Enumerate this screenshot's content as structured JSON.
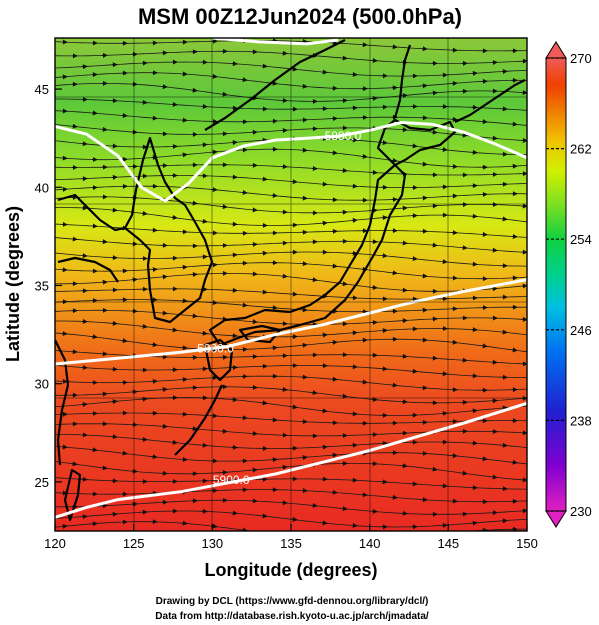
{
  "title": "MSM 00Z12Jun2024 (500.0hPa)",
  "x_axis": {
    "label": "Longitude (degrees)",
    "ticks": [
      "120",
      "125",
      "130",
      "135",
      "140",
      "145",
      "150"
    ],
    "range": [
      120,
      150
    ]
  },
  "y_axis": {
    "label": "Latitude  (degrees)",
    "ticks": [
      "25",
      "30",
      "35",
      "40",
      "45"
    ],
    "range": [
      22.5,
      47.6
    ]
  },
  "colorbar": {
    "ticks": [
      "270",
      "262",
      "254",
      "246",
      "238",
      "230"
    ],
    "min": 230,
    "max": 270,
    "colors": [
      "#e020c0",
      "#8000d0",
      "#2020d0",
      "#0070f0",
      "#00c0e0",
      "#00d090",
      "#10d040",
      "#80e020",
      "#d0f000",
      "#f0c000",
      "#f08000",
      "#f04000",
      "#e02010",
      "#f05a5a"
    ]
  },
  "contours": [
    {
      "label": "5880.0",
      "points": [
        [
          120,
          43.1
        ],
        [
          122,
          42.7
        ],
        [
          124,
          41.6
        ],
        [
          125.5,
          40.0
        ],
        [
          127,
          39.3
        ],
        [
          128.5,
          40.2
        ],
        [
          130,
          41.5
        ],
        [
          132,
          42.1
        ],
        [
          134,
          42.4
        ],
        [
          136,
          42.5
        ],
        [
          138,
          42.6
        ],
        [
          140,
          42.9
        ],
        [
          142,
          43.3
        ],
        [
          144,
          43.2
        ],
        [
          146,
          42.8
        ],
        [
          148,
          42.2
        ],
        [
          150,
          41.5
        ]
      ]
    },
    {
      "label": "5880.0",
      "points": [
        [
          130,
          47.6
        ],
        [
          133,
          47.4
        ],
        [
          136,
          47.3
        ],
        [
          138,
          47.5
        ]
      ]
    },
    {
      "label": "5880.0",
      "points": [
        [
          120,
          31.0
        ],
        [
          124,
          31.3
        ],
        [
          128,
          31.6
        ],
        [
          131,
          31.9
        ],
        [
          134,
          32.5
        ],
        [
          137,
          33.0
        ],
        [
          140,
          33.6
        ],
        [
          143,
          34.2
        ],
        [
          146,
          34.7
        ],
        [
          150,
          35.3
        ]
      ]
    },
    {
      "label": "5900.0",
      "points": [
        [
          120,
          23.2
        ],
        [
          122,
          23.7
        ],
        [
          124,
          24.1
        ],
        [
          126,
          24.3
        ],
        [
          128,
          24.5
        ],
        [
          130,
          24.8
        ],
        [
          132,
          25.1
        ],
        [
          134,
          25.4
        ],
        [
          137,
          26.0
        ],
        [
          140,
          26.6
        ],
        [
          143,
          27.3
        ],
        [
          146,
          28.0
        ],
        [
          150,
          29.0
        ]
      ]
    }
  ],
  "contour_labels": [
    {
      "text": "5880.0",
      "lon": 138.3,
      "lat": 42.6
    },
    {
      "text": "5880.0",
      "lon": 130.2,
      "lat": 31.8
    },
    {
      "text": "5900.0",
      "lon": 131.2,
      "lat": 25.1
    }
  ],
  "credits": [
    "Drawing by DCL (https://www.gfd-dennou.org/library/dcl/)",
    "Data from http://database.rish.kyoto-u.ac.jp/arch/jmadata/"
  ]
}
